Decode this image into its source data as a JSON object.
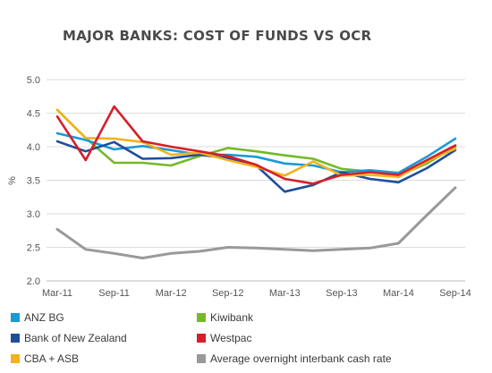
{
  "chart_data": {
    "type": "line",
    "title": "MAJOR BANKS: COST OF FUNDS VS OCR",
    "ylabel": "%",
    "xlabel": "",
    "ylim": [
      2.0,
      5.0
    ],
    "yticks": [
      "5.0",
      "4.5",
      "4.0",
      "3.5",
      "3.0",
      "2.5",
      "2.0"
    ],
    "ytick_values": [
      5.0,
      4.5,
      4.0,
      3.5,
      3.0,
      2.5,
      2.0
    ],
    "xticks": [
      "Mar-11",
      "Sep-11",
      "Mar-12",
      "Sep-12",
      "Mar-13",
      "Sep-13",
      "Mar-14",
      "Sep-14"
    ],
    "grid": "horizontal",
    "legend_placement": "bottom",
    "series": [
      {
        "name": "ANZ BG",
        "color": "#1a9ad6",
        "x": [
          "Mar-11",
          "Jun-11",
          "Sep-11",
          "Dec-11",
          "Mar-12",
          "Jun-12",
          "Sep-12",
          "Dec-12",
          "Mar-13",
          "Jun-13",
          "Sep-13",
          "Dec-13",
          "Mar-14",
          "Jun-14",
          "Sep-14"
        ],
        "values": [
          4.2,
          4.1,
          3.96,
          4.01,
          3.95,
          3.88,
          3.88,
          3.85,
          3.75,
          3.72,
          3.62,
          3.65,
          3.61,
          3.85,
          4.12
        ]
      },
      {
        "name": "Bank of New Zealand",
        "color": "#1f4e99",
        "x": [
          "Mar-11",
          "Jun-11",
          "Sep-11",
          "Dec-11",
          "Mar-12",
          "Jun-12",
          "Sep-12",
          "Dec-12",
          "Mar-13",
          "Jun-13",
          "Sep-13",
          "Dec-13",
          "Mar-14",
          "Jun-14",
          "Sep-14"
        ],
        "values": [
          4.08,
          3.93,
          4.07,
          3.82,
          3.83,
          3.88,
          3.83,
          3.72,
          3.33,
          3.43,
          3.62,
          3.52,
          3.47,
          3.68,
          3.95
        ]
      },
      {
        "name": "CBA + ASB",
        "color": "#f2b21b",
        "x": [
          "Mar-11",
          "Jun-11",
          "Sep-11",
          "Dec-11",
          "Mar-12",
          "Jun-12",
          "Sep-12",
          "Dec-12",
          "Mar-13",
          "Jun-13",
          "Sep-13",
          "Dec-13",
          "Mar-14",
          "Jun-14",
          "Sep-14"
        ],
        "values": [
          4.55,
          4.13,
          4.12,
          4.07,
          3.88,
          3.91,
          3.8,
          3.7,
          3.57,
          3.78,
          3.57,
          3.58,
          3.55,
          3.78,
          3.97
        ]
      },
      {
        "name": "Kiwibank",
        "color": "#76b82a",
        "x": [
          "Mar-11",
          "Jun-11",
          "Sep-11",
          "Dec-11",
          "Mar-12",
          "Jun-12",
          "Sep-12",
          "Dec-12",
          "Mar-13",
          "Jun-13",
          "Sep-13",
          "Dec-13",
          "Mar-14",
          "Jun-14",
          "Sep-14"
        ],
        "values": [
          4.55,
          4.13,
          3.76,
          3.76,
          3.72,
          3.86,
          3.98,
          3.93,
          3.87,
          3.82,
          3.67,
          3.63,
          3.57,
          3.75,
          4.0
        ]
      },
      {
        "name": "Westpac",
        "color": "#d71f2b",
        "x": [
          "Mar-11",
          "Jun-11",
          "Sep-11",
          "Dec-11",
          "Mar-12",
          "Jun-12",
          "Sep-12",
          "Dec-12",
          "Mar-13",
          "Jun-13",
          "Sep-13",
          "Dec-13",
          "Mar-14",
          "Jun-14",
          "Sep-14"
        ],
        "values": [
          4.45,
          3.8,
          4.6,
          4.08,
          4.0,
          3.93,
          3.86,
          3.73,
          3.52,
          3.45,
          3.58,
          3.62,
          3.58,
          3.8,
          4.02
        ]
      },
      {
        "name": "Average overnight interbank cash rate",
        "color": "#999999",
        "x": [
          "Mar-11",
          "Jun-11",
          "Sep-11",
          "Dec-11",
          "Mar-12",
          "Jun-12",
          "Sep-12",
          "Dec-12",
          "Mar-13",
          "Jun-13",
          "Sep-13",
          "Dec-13",
          "Mar-14",
          "Jun-14",
          "Sep-14"
        ],
        "values": [
          2.77,
          2.47,
          2.41,
          2.34,
          2.41,
          2.44,
          2.5,
          2.49,
          2.47,
          2.45,
          2.47,
          2.49,
          2.56,
          2.98,
          3.39
        ]
      }
    ]
  }
}
